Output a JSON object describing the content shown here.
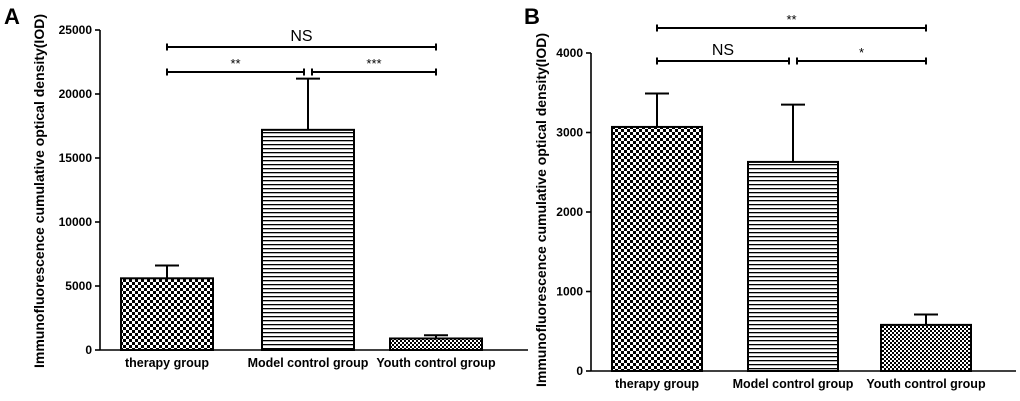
{
  "chart_data": [
    {
      "panel": "A",
      "type": "bar",
      "ylabel": "Immunofluorescence cumulative optical density(IOD)",
      "ylim": [
        0,
        25000
      ],
      "yticks": [
        0,
        5000,
        10000,
        15000,
        20000,
        25000
      ],
      "categories": [
        "therapy group",
        "Model control group",
        "Youth control group"
      ],
      "values": [
        5600,
        17200,
        900
      ],
      "errors": [
        1000,
        4000,
        250
      ],
      "patterns": [
        "checker",
        "horizontal-lines",
        "fine-checker"
      ],
      "significance": [
        {
          "from": 0,
          "to": 2,
          "label": "NS",
          "level": 2
        },
        {
          "from": 0,
          "to": 1,
          "label": "**",
          "level": 1
        },
        {
          "from": 1,
          "to": 2,
          "label": "***",
          "level": 1
        }
      ]
    },
    {
      "panel": "B",
      "type": "bar",
      "ylabel": "Immunofluorescence cumulative optical density(IOD)",
      "ylim": [
        0,
        4000
      ],
      "yticks": [
        0,
        1000,
        2000,
        3000,
        4000
      ],
      "categories": [
        "therapy group",
        "Model control group",
        "Youth control group"
      ],
      "values": [
        3070,
        2630,
        580
      ],
      "errors": [
        420,
        720,
        130
      ],
      "patterns": [
        "checker",
        "horizontal-lines",
        "fine-checker"
      ],
      "significance": [
        {
          "from": 0,
          "to": 2,
          "label": "**",
          "level": 2
        },
        {
          "from": 0,
          "to": 1,
          "label": "NS",
          "level": 1
        },
        {
          "from": 1,
          "to": 2,
          "label": "*",
          "level": 1
        }
      ]
    }
  ]
}
